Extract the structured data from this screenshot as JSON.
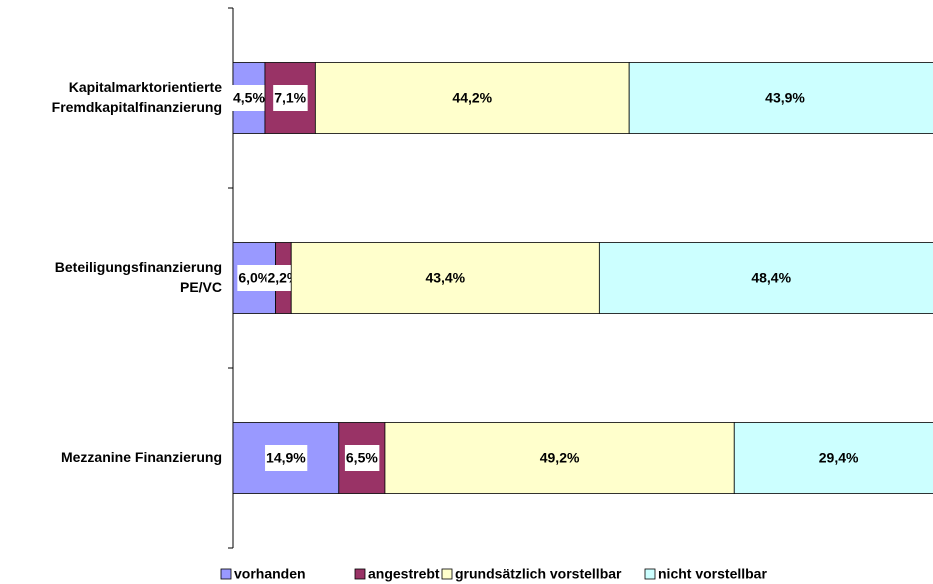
{
  "chart_data": {
    "type": "stacked-barh",
    "categories": [
      "Kapitalmarktorientierte\nFremdkapitalfinanzierung",
      "Beteiligungsfinanzierung\nPE/VC",
      "Mezzanine Finanzierung"
    ],
    "series": [
      {
        "name": "vorhanden",
        "color": "#9999ff",
        "values": [
          4.5,
          6.0,
          14.9
        ],
        "value_labels": [
          "4,5%",
          "6,0%",
          "14,9%"
        ]
      },
      {
        "name": "angestrebt",
        "color": "#993366",
        "values": [
          7.1,
          2.2,
          6.5
        ],
        "value_labels": [
          "7,1%",
          "2,2%",
          "6,5%"
        ]
      },
      {
        "name": "grundsätzlich vorstellbar",
        "color": "#ffffcc",
        "values": [
          44.2,
          43.4,
          49.2
        ],
        "value_labels": [
          "44,2%",
          "43,4%",
          "49,2%"
        ]
      },
      {
        "name": "nicht vorstellbar",
        "color": "#ccffff",
        "values": [
          43.9,
          48.4,
          29.4
        ],
        "value_labels": [
          "43,9%",
          "48,4%",
          "29,4%"
        ]
      }
    ],
    "xlim": [
      0,
      100
    ],
    "legend": "bottom"
  }
}
